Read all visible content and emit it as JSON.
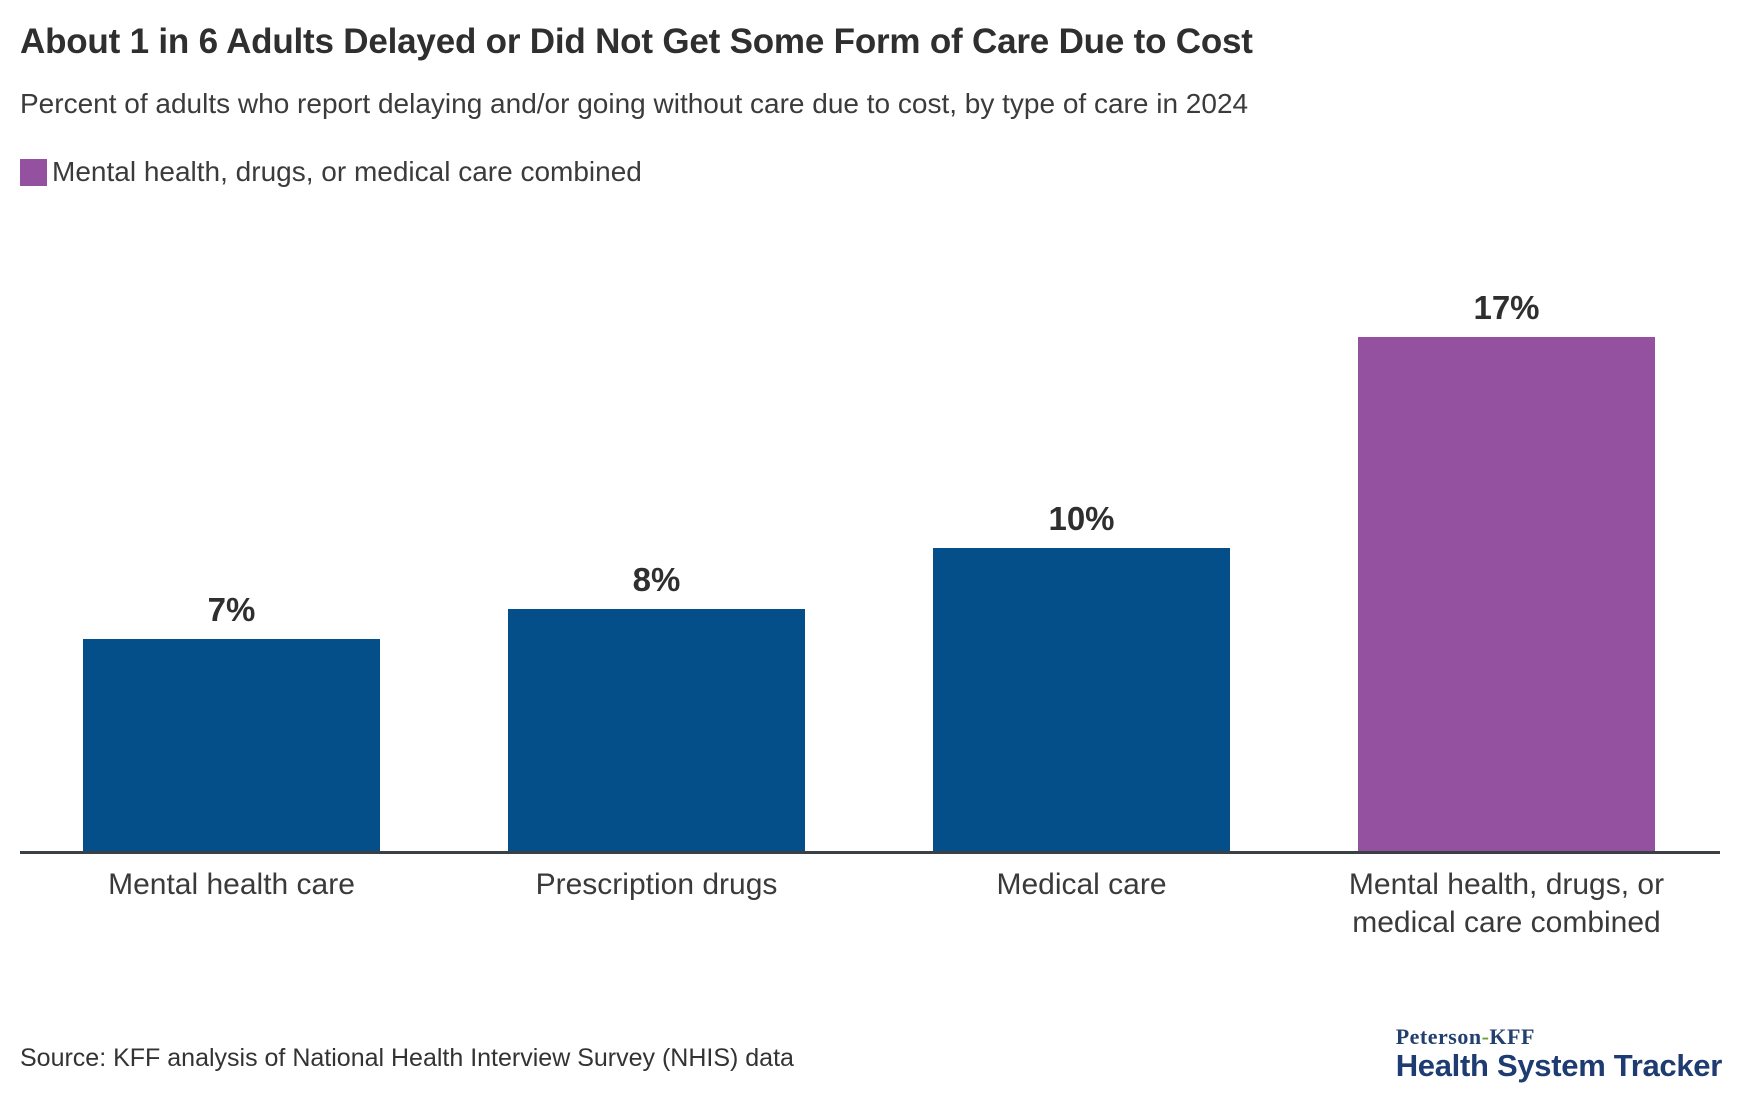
{
  "header": {
    "title": "About 1 in 6 Adults Delayed or Did Not Get Some Form of Care Due to Cost",
    "subtitle": "Percent of adults who report delaying and/or going without care due to cost, by type of care in 2024"
  },
  "legend": {
    "swatch_color": "#94519F",
    "label": "Mental health, drugs, or medical care combined"
  },
  "chart_data": {
    "type": "bar",
    "title": "About 1 in 6 Adults Delayed or Did Not Get Some Form of Care Due to Cost",
    "subtitle": "Percent of adults who report delaying and/or going without care due to cost, by type of care in 2024",
    "categories": [
      "Mental health care",
      "Prescription drugs",
      "Medical care",
      "Mental health, drugs, or medical care combined"
    ],
    "values": [
      7,
      8,
      10,
      17
    ],
    "value_labels": [
      "7%",
      "8%",
      "10%",
      "17%"
    ],
    "bar_colors": [
      "#044E8A",
      "#044E8A",
      "#044E8A",
      "#94519F"
    ],
    "unit": "%",
    "xlabel": "",
    "ylabel": "",
    "ylim": [
      0,
      18
    ],
    "grid": false,
    "y_axis_visible": false,
    "legend_position": "top-left",
    "legend": [
      {
        "label": "Mental health, drugs, or medical care combined",
        "color": "#94519F"
      }
    ]
  },
  "footer": {
    "source": "Source: KFF analysis of National Health Interview Survey (NHIS) data",
    "logo": {
      "line1_left": "Peterson",
      "line1_hyphen": "-",
      "line1_right": "KFF",
      "line2": "Health System Tracker"
    }
  },
  "colors": {
    "bar_blue": "#044E8A",
    "bar_purple": "#94519F",
    "axis_line": "#3B4045",
    "text_dark": "#2F2F2F",
    "logo_navy": "#1E3B72",
    "logo_hyphen_green": "#6FA03C"
  }
}
